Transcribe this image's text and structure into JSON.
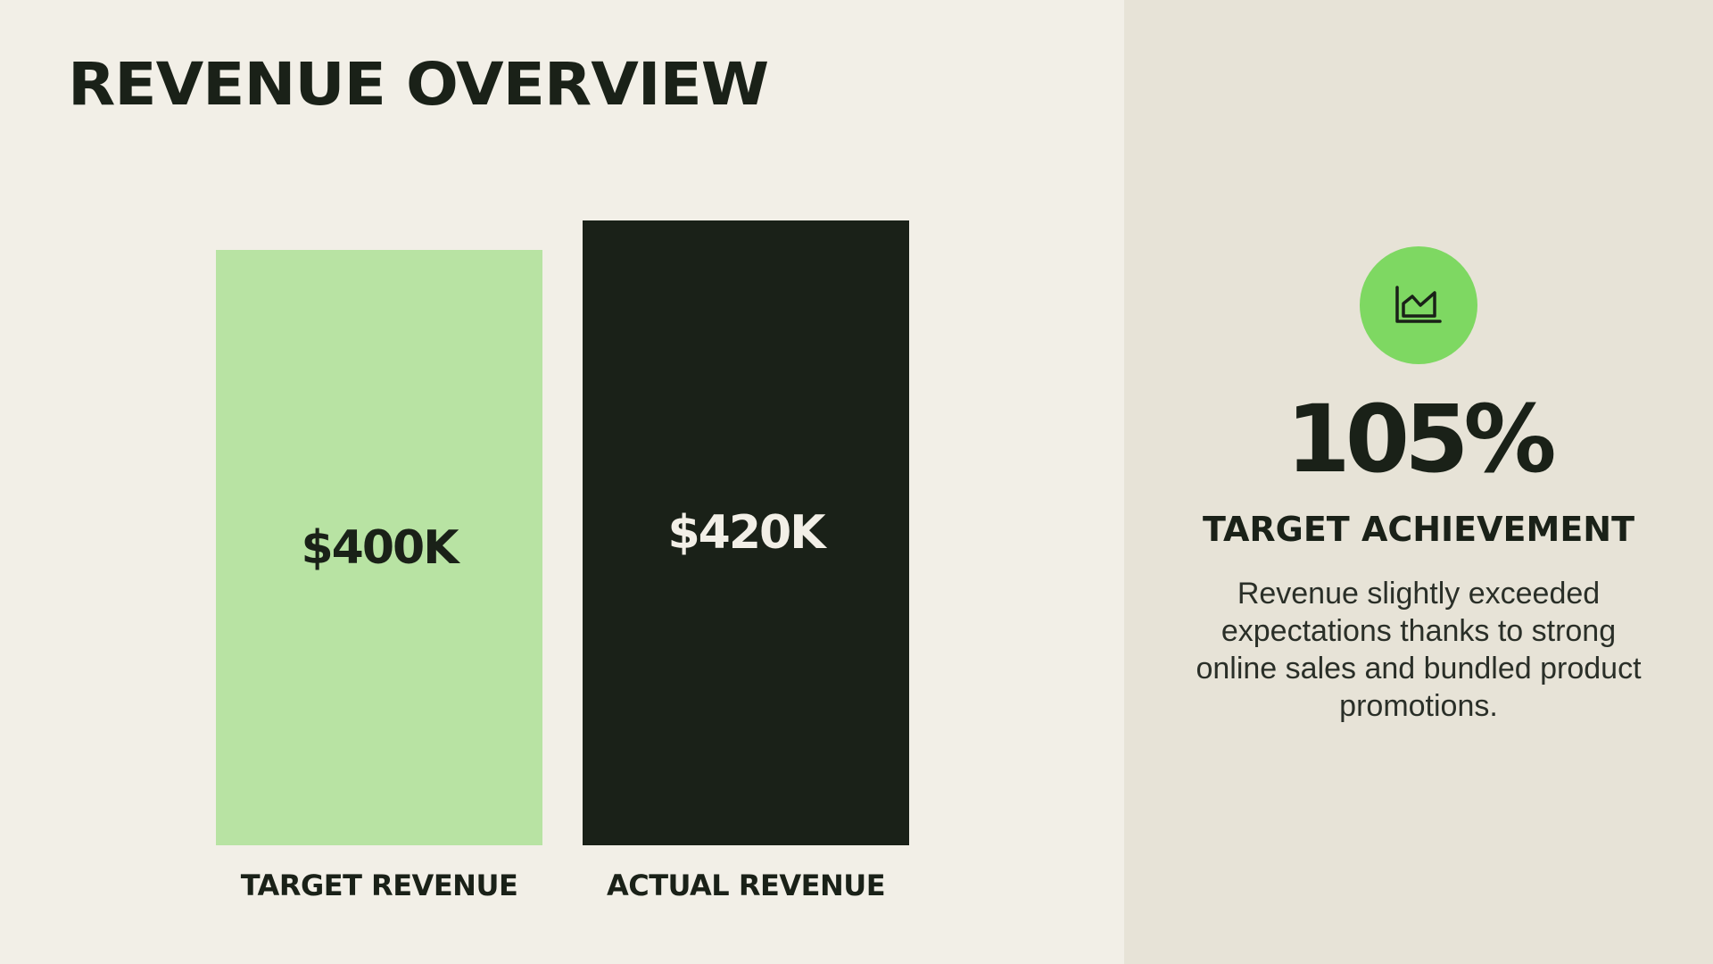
{
  "slide": {
    "title": "REVENUE OVERVIEW"
  },
  "chart_data": {
    "type": "bar",
    "categories": [
      "TARGET REVENUE",
      "ACTUAL REVENUE"
    ],
    "values": [
      400,
      420
    ],
    "value_labels": [
      "$400K",
      "$420K"
    ],
    "colors": [
      "#b8e3a3",
      "#1a2118"
    ],
    "label_colors": [
      "#1a2118",
      "#f2efe7"
    ],
    "ylim": [
      0,
      420
    ],
    "grid": false,
    "legend": "none"
  },
  "kpi": {
    "icon": "area-chart-icon",
    "value": "105%",
    "label": "TARGET ACHIEVEMENT",
    "description": "Revenue slightly exceeded expectations thanks to strong online sales and bundled product promotions."
  },
  "colors": {
    "background": "#f2efe7",
    "panel": "#e7e3d7",
    "accent": "#7ed862",
    "dark": "#1a2118",
    "light_green": "#b8e3a3"
  }
}
